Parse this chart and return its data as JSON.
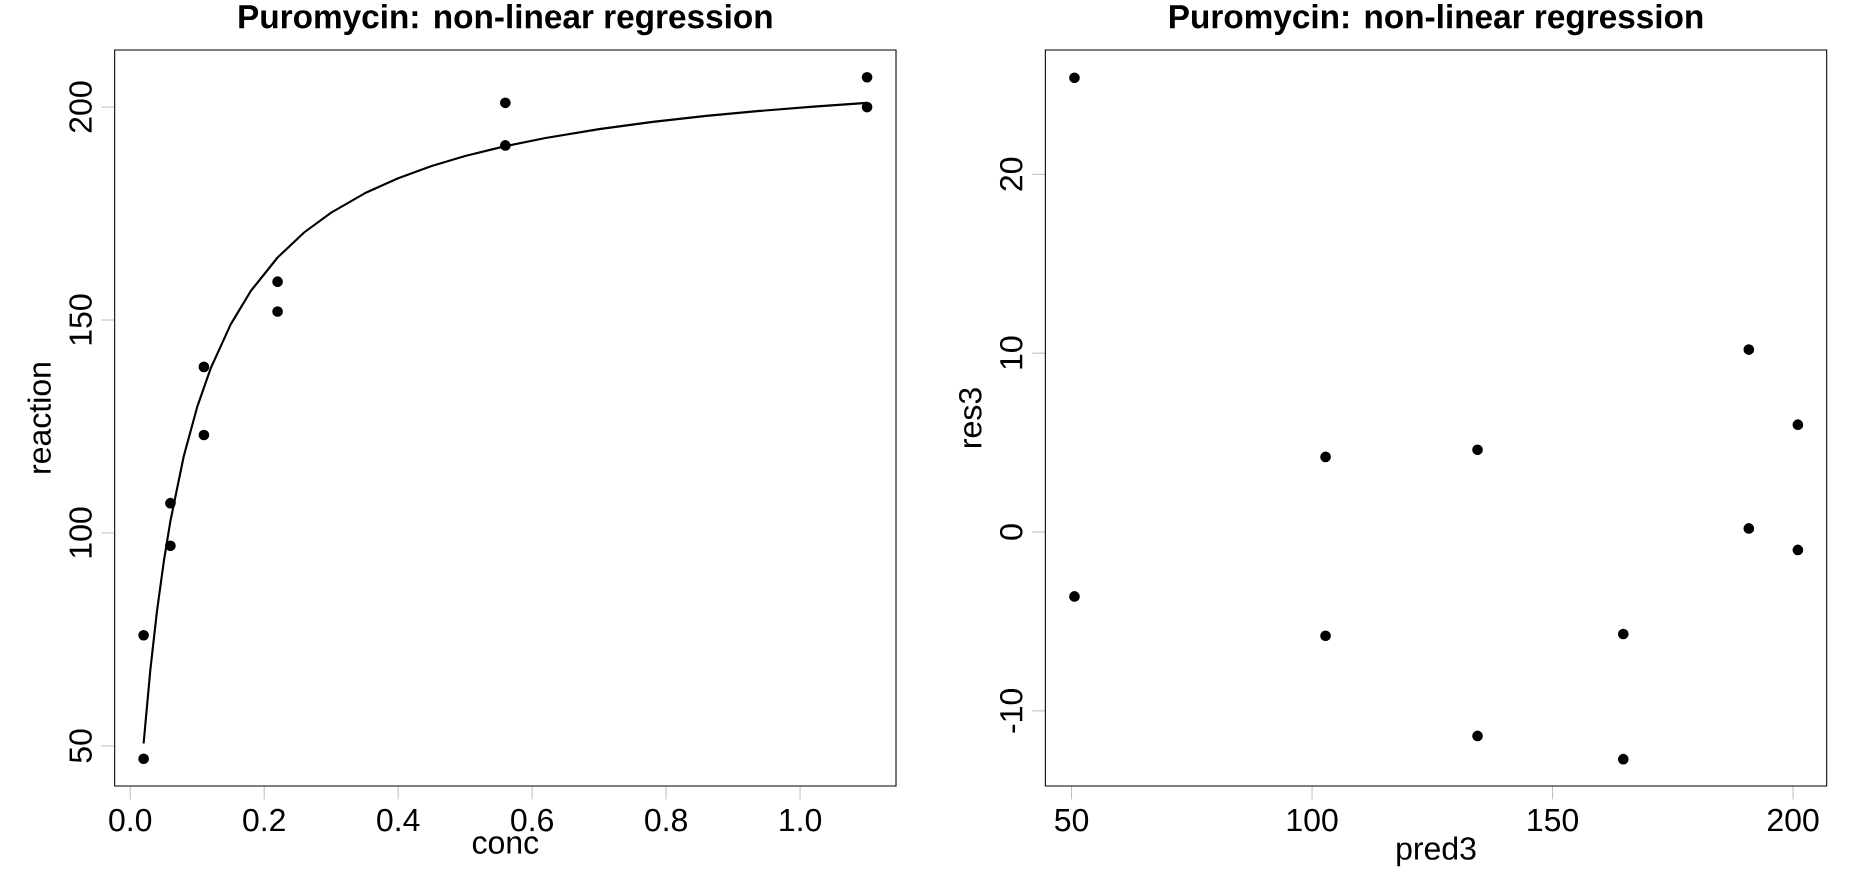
{
  "chart_data": [
    {
      "type": "scatter",
      "title": "Puromycin: non-linear regression",
      "xlabel": "conc",
      "ylabel": "reaction",
      "xlim": [
        -0.0232,
        1.1432
      ],
      "ylim": [
        40.6,
        213.4
      ],
      "xticks": [
        {
          "value": 0,
          "label": "0.0"
        },
        0.2,
        0.4,
        0.6,
        0.8,
        {
          "value": 1,
          "label": "1.0"
        }
      ],
      "yticks": [
        50,
        100,
        150,
        200
      ],
      "series": [
        {
          "color": "#000000",
          "marker": "circle",
          "x": [
            0.02,
            0.02,
            0.06,
            0.06,
            0.11,
            0.11,
            0.22,
            0.22,
            0.56,
            0.56,
            1.1,
            1.1
          ],
          "values": [
            76,
            47,
            97,
            107,
            123,
            139,
            159,
            152,
            191,
            201,
            207,
            200
          ]
        },
        {
          "type": "line",
          "color": "#000000",
          "marker": "none",
          "line_style": "solid",
          "x": [
            0.02,
            0.03,
            0.04,
            0.05,
            0.06,
            0.08,
            0.1,
            0.12,
            0.15,
            0.18,
            0.22,
            0.26,
            0.3,
            0.35,
            0.4,
            0.45,
            0.5,
            0.56,
            0.62,
            0.7,
            0.78,
            0.86,
            0.94,
            1.02,
            1.1
          ],
          "values": [
            50.57,
            67.79,
            81.71,
            93.18,
            102.81,
            118.06,
            129.59,
            138.61,
            148.99,
            156.82,
            164.68,
            170.61,
            175.23,
            179.75,
            183.3,
            186.16,
            188.51,
            190.83,
            192.74,
            194.83,
            196.53,
            197.93,
            199.1,
            200.1,
            200.97
          ]
        }
      ]
    },
    {
      "type": "scatter",
      "title": "Puromycin: non-linear regression",
      "xlabel": "pred3",
      "ylabel": "res3",
      "xlim": [
        44.55,
        206.99
      ],
      "ylim": [
        -14.2,
        26.95
      ],
      "xticks": [
        50,
        100,
        150,
        200
      ],
      "yticks": [
        -10,
        0,
        10,
        20
      ],
      "series": [
        {
          "color": "#000000",
          "marker": "circle",
          "x": [
            50.6,
            50.6,
            102.8,
            102.8,
            134.4,
            134.4,
            164.7,
            164.7,
            190.8,
            190.8,
            201.0,
            201.0
          ],
          "values": [
            25.4,
            -3.6,
            -5.8,
            4.2,
            -11.4,
            4.6,
            -5.7,
            -12.7,
            0.2,
            10.2,
            6.0,
            -1.0
          ]
        }
      ]
    }
  ]
}
